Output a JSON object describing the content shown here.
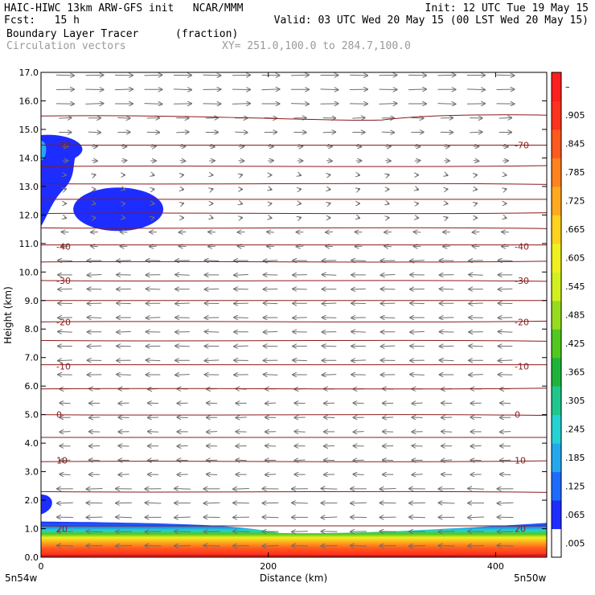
{
  "header": {
    "line1_left": "HAIC-HIWC 13km ARW-GFS init   NCAR/MMM",
    "line1_right": "Init: 12 UTC Tue 19 May 15",
    "line2_left": "Fcst:   15 h",
    "line2_right": "Valid: 03 UTC Wed 20 May 15 (00 LST Wed 20 May 15)",
    "line3_field": "Boundary Layer Tracer",
    "line3_units": "(fraction)",
    "line4_field": "Circulation vectors",
    "line4_xy": "XY= 251.0,100.0 to 284.7,100.0"
  },
  "chart_data": {
    "type": "heatmap",
    "title": "Boundary Layer Tracer",
    "units": "(fraction)",
    "xlabel": "Distance (km)",
    "ylabel": "Height (km)",
    "xlim": [
      0,
      445
    ],
    "ylim": [
      0,
      17
    ],
    "x_ticks": [
      {
        "value": 0,
        "label": "0"
      },
      {
        "value": 200,
        "label": "200"
      },
      {
        "value": 400,
        "label": "400"
      }
    ],
    "y_ticks": [
      "0.0",
      "1.0",
      "2.0",
      "3.0",
      "4.0",
      "5.0",
      "6.0",
      "7.0",
      "8.0",
      "9.0",
      "10.0",
      "11.0",
      "12.0",
      "13.0",
      "14.0",
      "15.0",
      "16.0",
      "17.0"
    ],
    "x_end_labels": {
      "left": "5n54w",
      "right": "5n50w"
    },
    "colorbar": {
      "labels": [
        ".005",
        ".065",
        ".125",
        ".185",
        ".245",
        ".305",
        ".365",
        ".425",
        ".485",
        ".545",
        ".605",
        ".665",
        ".725",
        ".785",
        ".845",
        ".905",
        "–"
      ],
      "colors": [
        "#ffffff",
        "#1e2dff",
        "#1e6bff",
        "#23a8f0",
        "#23d2d2",
        "#1ec88c",
        "#1eb43c",
        "#50c81e",
        "#96dc1e",
        "#d2f01e",
        "#f0f01e",
        "#ffd21e",
        "#ffaa1e",
        "#ff821e",
        "#ff5a1e",
        "#ff321e",
        "#ff1e1e"
      ]
    },
    "temperature_contours": [
      {
        "label": "-70",
        "height_km": 14.45
      },
      {
        "label": "-40",
        "height_km": 10.9
      },
      {
        "label": "-30",
        "height_km": 9.7
      },
      {
        "label": "-20",
        "height_km": 8.25
      },
      {
        "label": "-10",
        "height_km": 6.7
      },
      {
        "label": "0",
        "height_km": 5.0
      },
      {
        "label": "10",
        "height_km": 3.4
      },
      {
        "label": "20",
        "height_km": 1.0
      }
    ],
    "vector_legend": "Circulation vectors"
  }
}
